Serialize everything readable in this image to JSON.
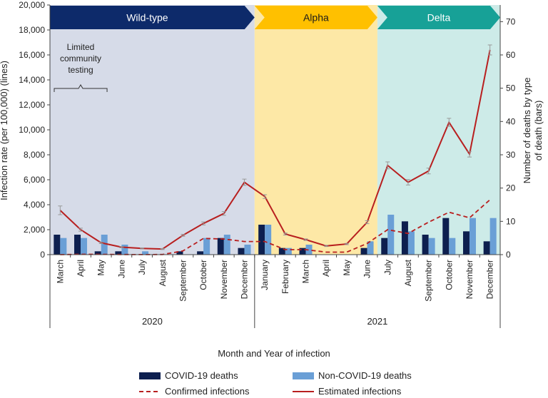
{
  "chart_data": {
    "type": "bar+line",
    "xlabel": "Month and Year of infection",
    "ylabel_left": "Infection rate (per 100,000) (lines)",
    "ylabel_right": "Number of deaths by type of death (bars)",
    "ylim_left": [
      0,
      20000
    ],
    "ylim_right": [
      0,
      75
    ],
    "left_ticks": [
      0,
      2000,
      4000,
      6000,
      8000,
      10000,
      12000,
      14000,
      16000,
      18000,
      20000
    ],
    "left_tick_labels": [
      "0",
      "2,000",
      "4,000",
      "6,000",
      "8,000",
      "10,000",
      "12,000",
      "14,000",
      "16,000",
      "18,000",
      "20,000"
    ],
    "right_ticks": [
      0,
      10,
      20,
      30,
      40,
      50,
      60,
      70
    ],
    "right_tick_labels": [
      "0",
      "10",
      "20",
      "30",
      "40",
      "50",
      "60",
      "70"
    ],
    "categories": [
      "March",
      "April",
      "May",
      "June",
      "July",
      "August",
      "September",
      "October",
      "November",
      "December",
      "January",
      "February",
      "March",
      "April",
      "May",
      "June",
      "July",
      "August",
      "September",
      "October",
      "November",
      "December"
    ],
    "years": [
      {
        "label": "2020",
        "start": 0,
        "end": 9
      },
      {
        "label": "2021",
        "start": 10,
        "end": 21
      }
    ],
    "variants": [
      {
        "label": "Wild-type",
        "start": 0,
        "end": 9,
        "band_color": "#d6dbe8",
        "arrow_color": "#0d2a6a"
      },
      {
        "label": "Alpha",
        "start": 10,
        "end": 15,
        "band_color": "#fde8a6",
        "arrow_color": "#ffc000"
      },
      {
        "label": "Delta",
        "start": 16,
        "end": 21,
        "band_color": "#cdebe8",
        "arrow_color": "#17a197"
      }
    ],
    "annotation": {
      "lines": [
        "Limited",
        "community",
        "testing"
      ],
      "start": 0,
      "end": 2
    },
    "series": [
      {
        "name": "COVID-19 deaths",
        "kind": "bar",
        "axis": "right",
        "color": "#0d1f4f",
        "values": [
          6,
          6,
          1,
          1,
          0,
          0,
          1,
          1,
          5,
          2,
          9,
          2,
          2,
          0,
          0,
          2,
          5,
          10,
          6,
          11,
          7,
          4
        ]
      },
      {
        "name": "Non-COVID-19 deaths",
        "kind": "bar",
        "axis": "right",
        "color": "#6a9fd6",
        "values": [
          5,
          5,
          6,
          3,
          1,
          0,
          0,
          5,
          6,
          3,
          9,
          2,
          3,
          0,
          0,
          4,
          12,
          7,
          5,
          5,
          11,
          11
        ]
      },
      {
        "name": "Confirmed infections",
        "kind": "line",
        "dash": true,
        "axis": "left",
        "color": "#b81f1f",
        "values": [
          0,
          30,
          20,
          10,
          5,
          10,
          300,
          1300,
          1250,
          1050,
          1050,
          400,
          400,
          200,
          200,
          900,
          2000,
          1700,
          2600,
          3400,
          2950,
          4400
        ]
      },
      {
        "name": "Estimated infections",
        "kind": "line",
        "axis": "left",
        "color": "#b81f1f",
        "values": [
          3550,
          2000,
          950,
          600,
          500,
          450,
          1550,
          2500,
          3300,
          5800,
          4650,
          1650,
          1200,
          700,
          850,
          2600,
          7150,
          5800,
          6700,
          10600,
          8050,
          16400
        ],
        "error": [
          350,
          120,
          60,
          50,
          40,
          40,
          80,
          120,
          150,
          250,
          150,
          80,
          60,
          50,
          50,
          120,
          280,
          220,
          230,
          320,
          230,
          400
        ]
      }
    ],
    "legend_position": "bottom"
  }
}
